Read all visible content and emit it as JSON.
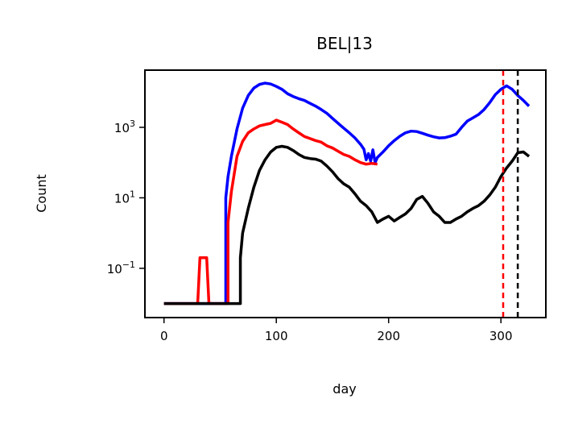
{
  "chart_data": {
    "type": "line",
    "title": "BEL|13",
    "xlabel": "day",
    "ylabel": "Count",
    "xlim": [
      -17,
      340
    ],
    "ylim": [
      0.004,
      42000
    ],
    "yscale": "log",
    "xticks": [
      0,
      100,
      200,
      300
    ],
    "xtick_labels": [
      "0",
      "100",
      "200",
      "300"
    ],
    "yticks": [
      0.1,
      10,
      1000
    ],
    "ytick_labels": [
      {
        "base": "10",
        "exp": "−1"
      },
      {
        "base": "10",
        "exp": "1"
      },
      {
        "base": "10",
        "exp": "3"
      }
    ],
    "grid": false,
    "series": [
      {
        "color": "#0000ff",
        "points": [
          [
            0,
            0.01
          ],
          [
            55,
            0.01
          ],
          [
            55,
            10
          ],
          [
            57,
            40
          ],
          [
            60,
            150
          ],
          [
            65,
            900
          ],
          [
            70,
            3500
          ],
          [
            75,
            8000
          ],
          [
            80,
            13000
          ],
          [
            85,
            16500
          ],
          [
            90,
            18000
          ],
          [
            95,
            17000
          ],
          [
            100,
            14500
          ],
          [
            105,
            12000
          ],
          [
            110,
            9000
          ],
          [
            115,
            7500
          ],
          [
            120,
            6500
          ],
          [
            125,
            5800
          ],
          [
            130,
            4800
          ],
          [
            135,
            4000
          ],
          [
            140,
            3200
          ],
          [
            145,
            2500
          ],
          [
            150,
            1800
          ],
          [
            155,
            1300
          ],
          [
            160,
            950
          ],
          [
            165,
            700
          ],
          [
            170,
            500
          ],
          [
            175,
            330
          ],
          [
            178,
            240
          ],
          [
            180,
            120
          ],
          [
            182,
            180
          ],
          [
            184,
            110
          ],
          [
            186,
            230
          ],
          [
            188,
            100
          ],
          [
            190,
            140
          ],
          [
            195,
            200
          ],
          [
            200,
            300
          ],
          [
            205,
            420
          ],
          [
            210,
            560
          ],
          [
            215,
            700
          ],
          [
            220,
            780
          ],
          [
            225,
            760
          ],
          [
            230,
            680
          ],
          [
            235,
            600
          ],
          [
            240,
            540
          ],
          [
            245,
            500
          ],
          [
            250,
            510
          ],
          [
            255,
            560
          ],
          [
            260,
            640
          ],
          [
            265,
            1000
          ],
          [
            270,
            1500
          ],
          [
            275,
            1850
          ],
          [
            280,
            2300
          ],
          [
            285,
            3200
          ],
          [
            290,
            5000
          ],
          [
            295,
            8500
          ],
          [
            300,
            12000
          ],
          [
            305,
            15000
          ],
          [
            310,
            12000
          ],
          [
            315,
            8000
          ],
          [
            320,
            5800
          ],
          [
            325,
            4000
          ]
        ]
      },
      {
        "color": "#ff0000",
        "points": [
          [
            0,
            0.01
          ],
          [
            30,
            0.01
          ],
          [
            32,
            0.2
          ],
          [
            38,
            0.2
          ],
          [
            40,
            0.01
          ],
          [
            57,
            0.01
          ],
          [
            57,
            2
          ],
          [
            60,
            15
          ],
          [
            65,
            150
          ],
          [
            70,
            400
          ],
          [
            75,
            700
          ],
          [
            80,
            900
          ],
          [
            85,
            1100
          ],
          [
            90,
            1200
          ],
          [
            95,
            1300
          ],
          [
            100,
            1600
          ],
          [
            105,
            1400
          ],
          [
            110,
            1200
          ],
          [
            115,
            900
          ],
          [
            120,
            700
          ],
          [
            125,
            550
          ],
          [
            130,
            480
          ],
          [
            135,
            420
          ],
          [
            140,
            380
          ],
          [
            145,
            300
          ],
          [
            150,
            260
          ],
          [
            155,
            210
          ],
          [
            160,
            170
          ],
          [
            165,
            150
          ],
          [
            170,
            120
          ],
          [
            175,
            100
          ],
          [
            180,
            90
          ],
          [
            185,
            95
          ],
          [
            190,
            90
          ]
        ]
      },
      {
        "color": "#000000",
        "points": [
          [
            0,
            0.01
          ],
          [
            68,
            0.01
          ],
          [
            68,
            0.2
          ],
          [
            70,
            1
          ],
          [
            75,
            5
          ],
          [
            80,
            20
          ],
          [
            85,
            60
          ],
          [
            90,
            120
          ],
          [
            95,
            200
          ],
          [
            100,
            270
          ],
          [
            105,
            290
          ],
          [
            110,
            270
          ],
          [
            115,
            220
          ],
          [
            120,
            170
          ],
          [
            125,
            140
          ],
          [
            130,
            130
          ],
          [
            135,
            125
          ],
          [
            140,
            110
          ],
          [
            145,
            80
          ],
          [
            150,
            55
          ],
          [
            155,
            35
          ],
          [
            160,
            25
          ],
          [
            165,
            20
          ],
          [
            170,
            13
          ],
          [
            175,
            8
          ],
          [
            180,
            6
          ],
          [
            185,
            4
          ],
          [
            190,
            2
          ],
          [
            195,
            2.5
          ],
          [
            200,
            3
          ],
          [
            205,
            2.2
          ],
          [
            210,
            2.8
          ],
          [
            215,
            3.5
          ],
          [
            220,
            5
          ],
          [
            225,
            9
          ],
          [
            230,
            11
          ],
          [
            235,
            7
          ],
          [
            240,
            4
          ],
          [
            245,
            3
          ],
          [
            250,
            2
          ],
          [
            255,
            2
          ],
          [
            260,
            2.5
          ],
          [
            265,
            3
          ],
          [
            270,
            4
          ],
          [
            275,
            5
          ],
          [
            280,
            6
          ],
          [
            285,
            8
          ],
          [
            290,
            12
          ],
          [
            295,
            20
          ],
          [
            300,
            40
          ],
          [
            305,
            70
          ],
          [
            310,
            110
          ],
          [
            315,
            190
          ],
          [
            320,
            200
          ],
          [
            325,
            150
          ]
        ]
      }
    ],
    "vlines": [
      {
        "x": 302,
        "color": "#ff0000",
        "style": "dashed"
      },
      {
        "x": 315,
        "color": "#000000",
        "style": "dashed"
      }
    ]
  }
}
